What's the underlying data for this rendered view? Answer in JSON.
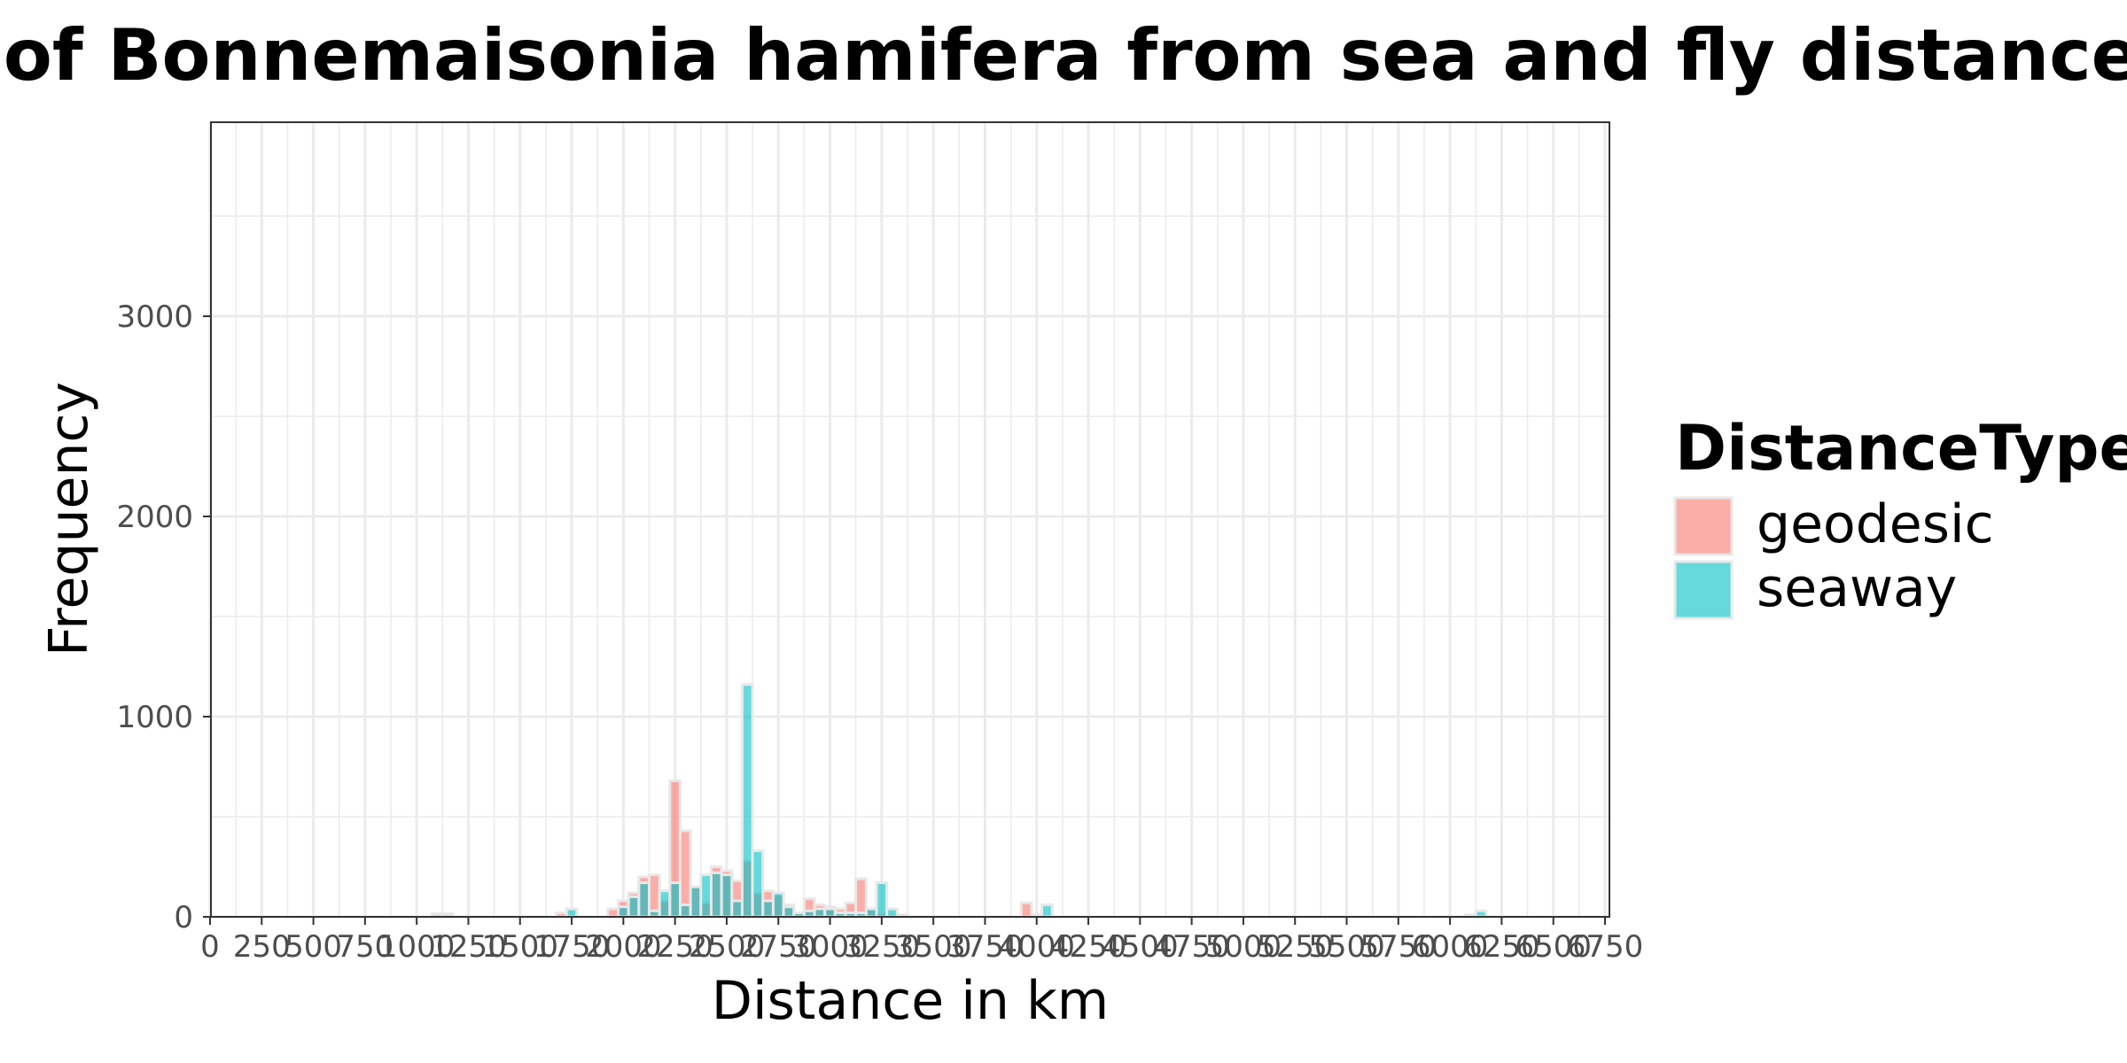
{
  "chart_data": {
    "type": "bar",
    "title": "tion of Bonnemaisonia hamifera from sea and fly distances",
    "xlabel": "Distance in km",
    "ylabel": "Frequency",
    "xlim": [
      0,
      6750
    ],
    "ylim": [
      0,
      3900
    ],
    "x_ticks": [
      0,
      250,
      500,
      750,
      1000,
      1250,
      1500,
      1750,
      2000,
      2250,
      2500,
      2750,
      3000,
      3250,
      3500,
      3750,
      4000,
      4250,
      4500,
      4750,
      5000,
      5250,
      5500,
      5750,
      6000,
      6250,
      6500,
      6750
    ],
    "y_ticks": [
      0,
      1000,
      2000,
      3000
    ],
    "grid": true,
    "legend": {
      "title": "DistanceType",
      "position": "right"
    },
    "bin_width": 50,
    "colors": {
      "geodesic": "#F8766D",
      "seaway": "#00BFC4",
      "bar_outline": "#e8e8e8",
      "grid": "#ebebeb",
      "panel_border": "#333333"
    },
    "series": [
      {
        "name": "geodesic",
        "color": "#F8766D",
        "x": [
          1100,
          1150,
          1700,
          1950,
          2000,
          2050,
          2100,
          2150,
          2200,
          2250,
          2300,
          2350,
          2400,
          2450,
          2500,
          2550,
          2600,
          2650,
          2700,
          2750,
          2800,
          2850,
          2900,
          2950,
          3000,
          3050,
          3100,
          3150,
          3200,
          3250,
          3300,
          3350,
          3950,
          4000,
          6100
        ],
        "values": [
          15,
          15,
          20,
          40,
          80,
          120,
          200,
          210,
          80,
          680,
          430,
          150,
          70,
          250,
          230,
          180,
          280,
          120,
          130,
          110,
          60,
          20,
          90,
          60,
          50,
          40,
          70,
          190,
          40,
          20,
          10,
          5,
          70,
          10,
          10
        ]
      },
      {
        "name": "seaway",
        "color": "#00BFC4",
        "x": [
          1750,
          2000,
          2050,
          2100,
          2150,
          2200,
          2250,
          2300,
          2350,
          2400,
          2450,
          2500,
          2550,
          2600,
          2650,
          2700,
          2750,
          2800,
          2850,
          2900,
          2950,
          3000,
          3050,
          3100,
          3150,
          3200,
          3250,
          3300,
          3350,
          4050,
          6150
        ],
        "values": [
          40,
          50,
          100,
          170,
          30,
          130,
          170,
          60,
          150,
          210,
          220,
          210,
          80,
          1160,
          330,
          80,
          120,
          50,
          20,
          30,
          40,
          40,
          20,
          20,
          20,
          40,
          170,
          40,
          10,
          60,
          30
        ]
      }
    ]
  }
}
